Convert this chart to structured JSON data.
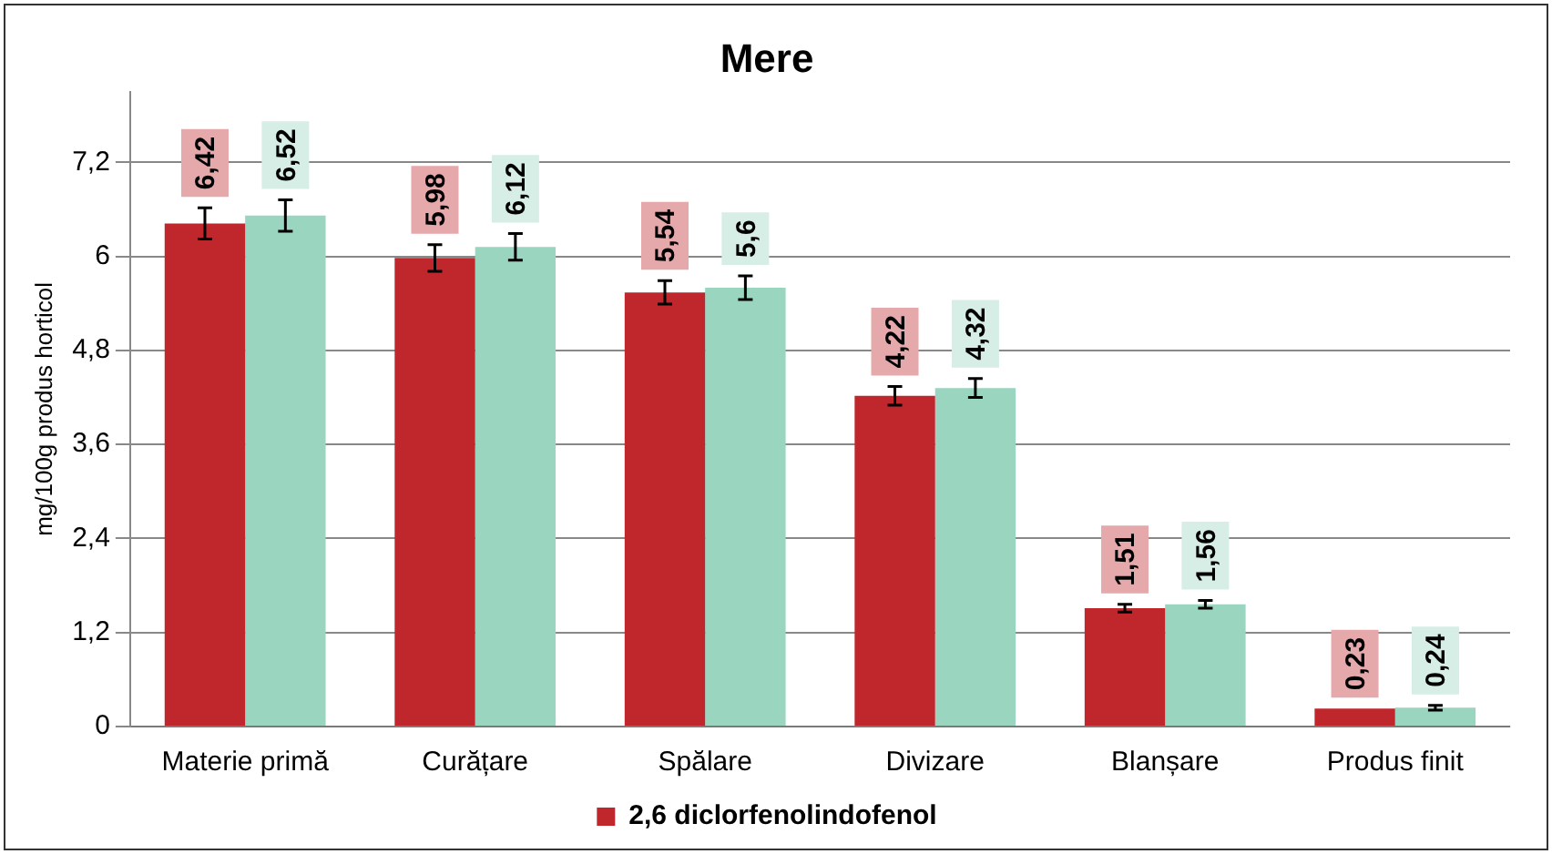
{
  "chart_data": {
    "type": "bar",
    "title": "Mere",
    "ylabel": "mg/100g produs horticol",
    "categories": [
      "Materie primă",
      "Curățare",
      "Spălare",
      "Divizare",
      "Blanșare",
      "Produs finit"
    ],
    "series": [
      {
        "name": "2,6 diclorfenolindofenol",
        "color": "#c0272d",
        "values": [
          6.42,
          5.98,
          5.54,
          4.22,
          1.51,
          0.23
        ],
        "errors": [
          0.2,
          0.17,
          0.15,
          0.12,
          0.05,
          null
        ],
        "value_labels": [
          "6,42",
          "5,98",
          "5,54",
          "4,22",
          "1,51",
          "0,23"
        ]
      },
      {
        "color": "#99d5bf",
        "values": [
          6.52,
          6.12,
          5.6,
          4.32,
          1.56,
          0.24
        ],
        "errors": [
          0.2,
          0.17,
          0.15,
          0.12,
          0.05,
          0.03
        ],
        "value_labels": [
          "6,52",
          "6,12",
          "5,6",
          "4,32",
          "1,56",
          "0,24"
        ]
      }
    ],
    "ylim": [
      0,
      8.1
    ],
    "yticks": [
      0,
      {
        "value": 1.2,
        "label": "1,2"
      },
      {
        "value": 2.4,
        "label": "2,4"
      },
      {
        "value": 3.6,
        "label": "3,6"
      },
      {
        "value": 4.8,
        "label": "4,8"
      },
      6,
      {
        "value": 7.2,
        "label": "7,2"
      }
    ],
    "grid": "y",
    "legend": "bottom"
  }
}
